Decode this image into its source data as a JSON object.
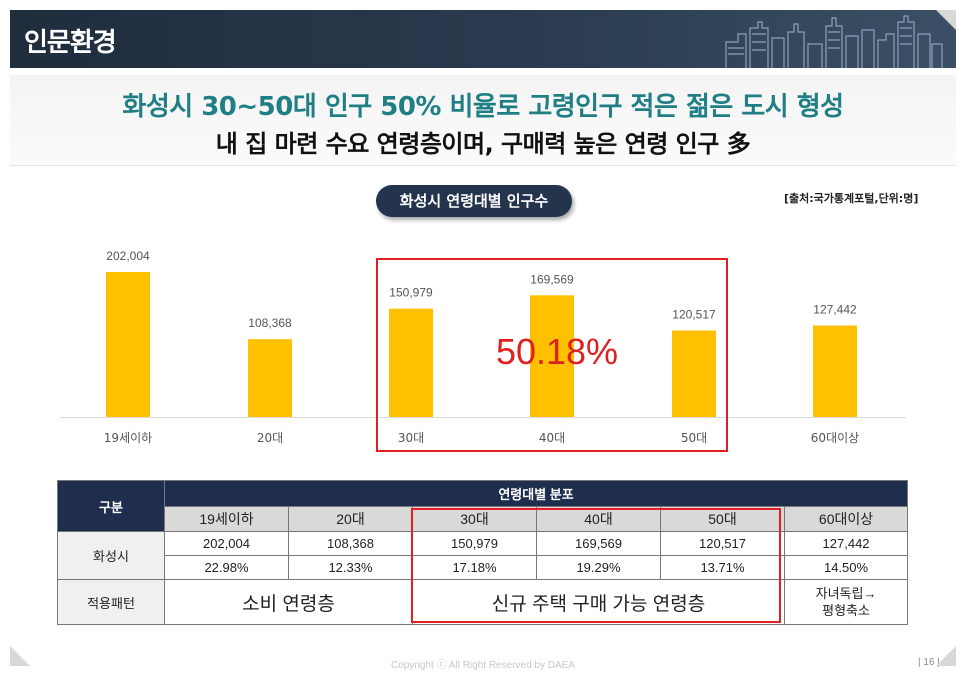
{
  "header": {
    "title": "인문환경"
  },
  "headline": {
    "line1": "화성시 30~50대 인구 50% 비율로 고령인구 적은 젊은 도시 형성",
    "line2": "내 집 마련 수요 연령층이며, 구매력 높은 연령 인구 多"
  },
  "chart_title": "화성시 연령대별 인구수",
  "source": "[출처:국가통계포털,단위:명]",
  "colors": {
    "bar": "#FFC000",
    "highlight": "#E02020",
    "header_dark": "#1F2E4E",
    "headline_teal": "#1F7F84"
  },
  "chart_data": {
    "type": "bar",
    "title": "화성시 연령대별 인구수",
    "categories": [
      "19세이하",
      "20대",
      "30대",
      "40대",
      "50대",
      "60대이상"
    ],
    "values": [
      202004,
      108368,
      150979,
      169569,
      120517,
      127442
    ],
    "value_labels": [
      "202,004",
      "108,368",
      "150,979",
      "169,569",
      "120,517",
      "127,442"
    ],
    "unit": "명",
    "annotation": "50.18%",
    "highlighted_categories": [
      "30대",
      "40대",
      "50대"
    ]
  },
  "table": {
    "header_label": "구분",
    "group_header": "연령대별 분포",
    "columns": [
      "19세이하",
      "20대",
      "30대",
      "40대",
      "50대",
      "60대이상"
    ],
    "row_label": "화성시",
    "counts": [
      "202,004",
      "108,368",
      "150,979",
      "169,569",
      "120,517",
      "127,442"
    ],
    "shares": [
      "22.98%",
      "12.33%",
      "17.18%",
      "19.29%",
      "13.71%",
      "14.50%"
    ],
    "pattern_label": "적용패턴",
    "pattern_consumption": "소비 연령층",
    "pattern_purchase": "신규 주택 구매 가능 연령층",
    "pattern_senior_line1": "자녀독립→",
    "pattern_senior_line2": "평형축소"
  },
  "footer": {
    "copyright": "Copyright ⓒ All Right Reserved by DAEA",
    "page": "| 16 |"
  }
}
